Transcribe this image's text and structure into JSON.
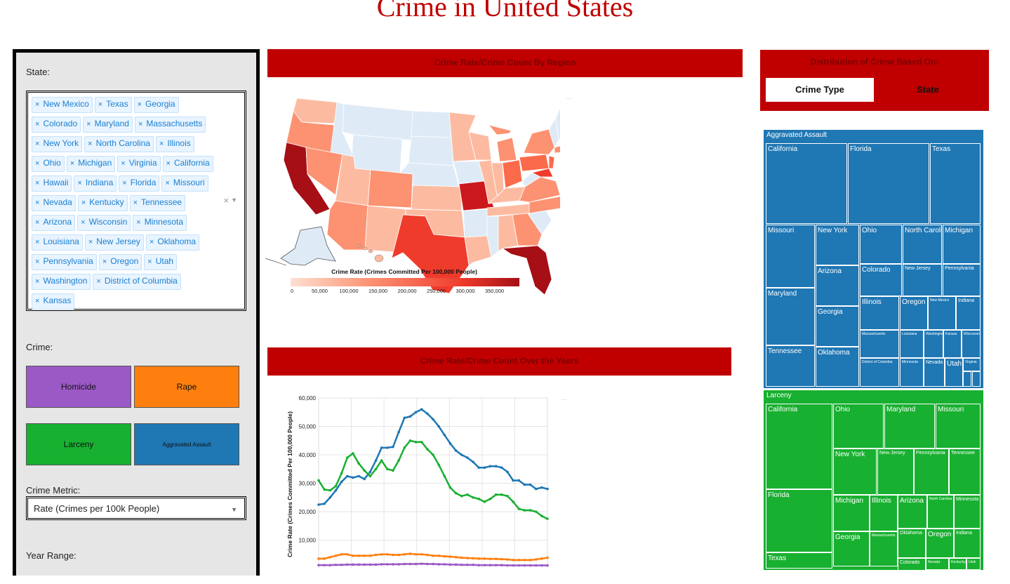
{
  "page": {
    "title": "Crime in United States"
  },
  "controls": {
    "state_label": "State:",
    "states": [
      "New Mexico",
      "Texas",
      "Georgia",
      "Colorado",
      "Maryland",
      "Massachusetts",
      "New York",
      "North Carolina",
      "Illinois",
      "Ohio",
      "Michigan",
      "Virginia",
      "California",
      "Hawaii",
      "Indiana",
      "Florida",
      "Missouri",
      "Nevada",
      "Kentucky",
      "Tennessee",
      "Arizona",
      "Wisconsin",
      "Minnesota",
      "Louisiana",
      "New Jersey",
      "Oklahoma",
      "Pennsylvania",
      "Oregon",
      "Utah",
      "Washington",
      "District of Columbia",
      "Kansas"
    ],
    "chip_remove": "×",
    "clear_all": "×",
    "crime_label": "Crime:",
    "crime_buttons": [
      {
        "label": "Homicide",
        "color": "#9b59c6"
      },
      {
        "label": "Rape",
        "color": "#ff7f0e"
      },
      {
        "label": "Larceny",
        "color": "#18b030"
      },
      {
        "label": "Aggravated Assault",
        "color": "#1f77b4"
      }
    ],
    "metric_label": "Crime Metric:",
    "metric_value": "Rate (Crimes per 100k People)",
    "year_label": "Year Range:"
  },
  "map_panel": {
    "header": "Crime Rate/Crime Count By Region",
    "colorbar_title": "Crime Rate (Crimes Committed Per 100,000 People)",
    "colorbar_ticks": [
      "0",
      "50,000",
      "100,000",
      "150,000",
      "200,000",
      "250,000",
      "300,000",
      "350,000"
    ]
  },
  "line_panel": {
    "header": "Crime Rate/Crime Count Over the Years"
  },
  "dist_panel": {
    "header": "Distribution of Crime Based On:",
    "options": [
      "Crime Type",
      "State"
    ],
    "selected": "Crime Type"
  },
  "chart_data": {
    "type": "line",
    "ylabel": "Crime Rate (Crimes Committed Per 100,000 People)",
    "ylim": [
      0,
      60000
    ],
    "yticks": [
      "10,000",
      "20,000",
      "30,000",
      "40,000",
      "50,000",
      "60,000"
    ],
    "grid": true,
    "series": [
      {
        "color": "#1f77b4",
        "values": [
          22500,
          22800,
          25000,
          27500,
          30500,
          32500,
          32000,
          32500,
          31500,
          34000,
          38000,
          42500,
          42500,
          42800,
          48000,
          53000,
          53500,
          55000,
          56000,
          54500,
          52500,
          50000,
          47000,
          44000,
          41500,
          40000,
          39000,
          37500,
          35500,
          35500,
          36000,
          36000,
          35500,
          34000,
          31000,
          31000,
          29500,
          29500,
          28000,
          28500,
          28000
        ]
      },
      {
        "color": "#18b030",
        "values": [
          31000,
          27800,
          27500,
          29000,
          33500,
          39000,
          40500,
          37000,
          34500,
          32500,
          35000,
          38000,
          35000,
          34500,
          38000,
          42500,
          45000,
          44500,
          44500,
          42000,
          40000,
          36500,
          32500,
          28500,
          26500,
          25500,
          26000,
          25000,
          24500,
          23500,
          24500,
          26000,
          26000,
          25500,
          23500,
          21000,
          20500,
          20500,
          20000,
          18500,
          17500
        ]
      },
      {
        "color": "#ff7f0e",
        "values": [
          3500,
          3500,
          4000,
          4500,
          5000,
          5000,
          4500,
          4500,
          4500,
          4500,
          4800,
          5000,
          5000,
          4800,
          4800,
          5000,
          5200,
          5000,
          5000,
          4800,
          4500,
          4500,
          4300,
          4200,
          4000,
          3800,
          3700,
          3600,
          3500,
          3500,
          3400,
          3400,
          3300,
          3200,
          3000,
          3000,
          3000,
          3000,
          3200,
          3500,
          3800
        ]
      },
      {
        "color": "#9b59c6",
        "values": [
          1200,
          1200,
          1200,
          1300,
          1300,
          1400,
          1400,
          1400,
          1400,
          1400,
          1400,
          1500,
          1500,
          1500,
          1500,
          1600,
          1600,
          1600,
          1700,
          1600,
          1600,
          1500,
          1500,
          1400,
          1400,
          1300,
          1300,
          1300,
          1200,
          1200,
          1200,
          1200,
          1200,
          1100,
          1100,
          1100,
          1100,
          1100,
          1100,
          1100,
          1100
        ]
      }
    ]
  },
  "treemap": {
    "assault": {
      "title": "Aggravated Assault",
      "color": "#1f77b4",
      "cells": [
        "California",
        "Florida",
        "Texas",
        "Missouri",
        "New York",
        "Ohio",
        "North Carolina",
        "Michigan",
        "Arizona",
        "Colorado",
        "New Jersey",
        "Pennsylvania",
        "Maryland",
        "Illinois",
        "Oregon",
        "New Mexico",
        "Indiana",
        "Georgia",
        "Massachusetts",
        "Louisiana",
        "Washington",
        "Kansas",
        "Wisconsin",
        "Tennessee",
        "Oklahoma",
        "District of Columbia",
        "Minnesota",
        "Nevada",
        "Utah",
        "Virginia"
      ]
    },
    "larceny": {
      "title": "Larceny",
      "color": "#18b030",
      "cells": [
        "California",
        "Ohio",
        "Maryland",
        "Missouri",
        "New York",
        "New Jersey",
        "Pennsylvania",
        "Tennessee",
        "Florida",
        "Michigan",
        "Illinois",
        "Arizona",
        "North Carolina",
        "Minnesota",
        "Georgia",
        "Massachusetts",
        "Oklahoma",
        "Oregon",
        "Indiana",
        "Texas",
        "Colorado",
        "Nevada",
        "Kentucky",
        "Utah"
      ]
    }
  },
  "map_colors": {
    "light": "#deebf7",
    "c1": "#fcbba1",
    "c2": "#fc9272",
    "c3": "#fb6a4a",
    "c4": "#ef3b2c",
    "c5": "#cb181d",
    "c6": "#a50f15"
  }
}
